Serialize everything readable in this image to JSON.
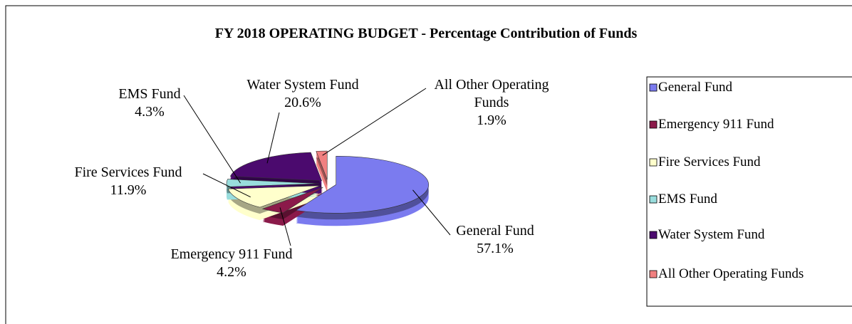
{
  "chart_data": {
    "type": "pie",
    "title": "FY 2018 OPERATING BUDGET - Percentage Contribution of Funds",
    "categories": [
      "General Fund",
      "Emergency 911 Fund",
      "Fire Services Fund",
      "EMS Fund",
      "Water System Fund",
      "All Other Operating Funds"
    ],
    "values": [
      57.1,
      4.2,
      11.9,
      4.3,
      20.6,
      1.9
    ],
    "value_labels": [
      "57.1%",
      "4.2%",
      "11.9%",
      "4.3%",
      "20.6%",
      "1.9%"
    ],
    "colors": [
      "#7b7bef",
      "#8b1a4a",
      "#ffffcc",
      "#99dddd",
      "#4b0a6e",
      "#f08080"
    ],
    "legend": "right"
  }
}
